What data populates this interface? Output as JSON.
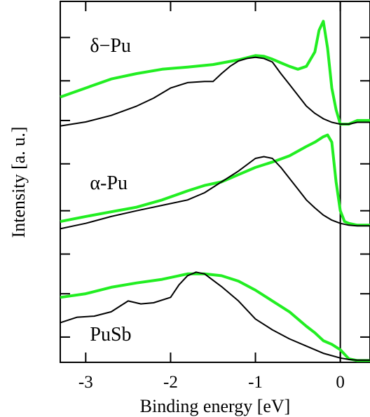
{
  "chart_data": {
    "type": "line",
    "xlabel": "Binding energy [eV]",
    "ylabel": "Intensity [a. u.]",
    "xlim": [
      -3.3,
      0.35
    ],
    "ylim": [
      0,
      1
    ],
    "xticks": [
      -3,
      -2,
      -1,
      0
    ],
    "xtick_labels": [
      "-3",
      "-2",
      "-1",
      "0"
    ],
    "yticks": [
      0.07,
      0.19,
      0.3,
      0.42,
      0.55,
      0.67,
      0.78,
      0.9,
      1.0
    ],
    "grid": false,
    "fermi_level_line": 0,
    "colors": {
      "experiment": "#22ee22",
      "theory": "#000000",
      "axes": "#000000"
    },
    "panels": [
      {
        "label": "δ−Pu",
        "experiment": {
          "x": [
            -3.3,
            -3.0,
            -2.7,
            -2.4,
            -2.1,
            -1.8,
            -1.5,
            -1.2,
            -1.0,
            -0.9,
            -0.8,
            -0.7,
            -0.6,
            -0.5,
            -0.4,
            -0.3,
            -0.25,
            -0.2,
            -0.15,
            -0.1,
            -0.05,
            0.0,
            0.1,
            0.2,
            0.35
          ],
          "y": [
            0.735,
            0.76,
            0.785,
            0.8,
            0.812,
            0.818,
            0.825,
            0.838,
            0.85,
            0.848,
            0.84,
            0.83,
            0.82,
            0.812,
            0.82,
            0.86,
            0.92,
            0.945,
            0.87,
            0.76,
            0.7,
            0.66,
            0.66,
            0.67,
            0.67
          ]
        },
        "theory": {
          "x": [
            -3.3,
            -3.0,
            -2.7,
            -2.4,
            -2.2,
            -2.0,
            -1.8,
            -1.6,
            -1.5,
            -1.4,
            -1.3,
            -1.2,
            -1.1,
            -1.0,
            -0.9,
            -0.8,
            -0.7,
            -0.6,
            -0.5,
            -0.4,
            -0.3,
            -0.2,
            -0.1,
            0.0,
            0.1,
            0.2,
            0.35
          ],
          "y": [
            0.655,
            0.666,
            0.684,
            0.71,
            0.732,
            0.76,
            0.775,
            0.778,
            0.778,
            0.8,
            0.82,
            0.835,
            0.842,
            0.845,
            0.842,
            0.832,
            0.8,
            0.77,
            0.74,
            0.71,
            0.69,
            0.675,
            0.665,
            0.66,
            0.66,
            0.665,
            0.665
          ]
        }
      },
      {
        "label": "α-Pu",
        "experiment": {
          "x": [
            -3.3,
            -3.0,
            -2.7,
            -2.4,
            -2.1,
            -1.8,
            -1.6,
            -1.4,
            -1.2,
            -1.0,
            -0.8,
            -0.6,
            -0.4,
            -0.3,
            -0.2,
            -0.15,
            -0.1,
            -0.05,
            0.0,
            0.05,
            0.1,
            0.2,
            0.35
          ],
          "y": [
            0.39,
            0.404,
            0.417,
            0.43,
            0.45,
            0.475,
            0.49,
            0.5,
            0.52,
            0.54,
            0.555,
            0.572,
            0.598,
            0.61,
            0.625,
            0.63,
            0.61,
            0.5,
            0.42,
            0.39,
            0.385,
            0.38,
            0.38
          ]
        },
        "theory": {
          "x": [
            -3.3,
            -3.0,
            -2.7,
            -2.4,
            -2.1,
            -1.8,
            -1.6,
            -1.4,
            -1.2,
            -1.0,
            -0.9,
            -0.8,
            -0.7,
            -0.6,
            -0.5,
            -0.4,
            -0.3,
            -0.2,
            -0.1,
            0.0,
            0.1,
            0.2,
            0.35
          ],
          "y": [
            0.37,
            0.385,
            0.404,
            0.42,
            0.435,
            0.45,
            0.47,
            0.5,
            0.53,
            0.565,
            0.57,
            0.565,
            0.54,
            0.51,
            0.48,
            0.45,
            0.428,
            0.408,
            0.394,
            0.385,
            0.38,
            0.378,
            0.378
          ]
        }
      },
      {
        "label": "PuSb",
        "experiment": {
          "x": [
            -3.3,
            -3.0,
            -2.7,
            -2.4,
            -2.1,
            -1.8,
            -1.6,
            -1.4,
            -1.2,
            -1.0,
            -0.8,
            -0.6,
            -0.4,
            -0.3,
            -0.2,
            -0.1,
            0.0,
            0.1,
            0.2,
            0.35
          ],
          "y": [
            0.18,
            0.19,
            0.208,
            0.22,
            0.23,
            0.245,
            0.245,
            0.24,
            0.225,
            0.2,
            0.17,
            0.14,
            0.1,
            0.082,
            0.06,
            0.05,
            0.035,
            0.01,
            0.005,
            0.005
          ]
        },
        "theory": {
          "x": [
            -3.3,
            -3.1,
            -2.9,
            -2.7,
            -2.5,
            -2.35,
            -2.2,
            -2.0,
            -1.9,
            -1.8,
            -1.7,
            -1.6,
            -1.4,
            -1.2,
            -1.0,
            -0.8,
            -0.6,
            -0.4,
            -0.2,
            0.0,
            0.1,
            0.2,
            0.35
          ],
          "y": [
            0.11,
            0.125,
            0.128,
            0.14,
            0.17,
            0.162,
            0.165,
            0.18,
            0.215,
            0.24,
            0.25,
            0.245,
            0.21,
            0.17,
            0.12,
            0.09,
            0.065,
            0.045,
            0.025,
            0.012,
            0.008,
            0.006,
            0.006
          ]
        }
      }
    ]
  }
}
